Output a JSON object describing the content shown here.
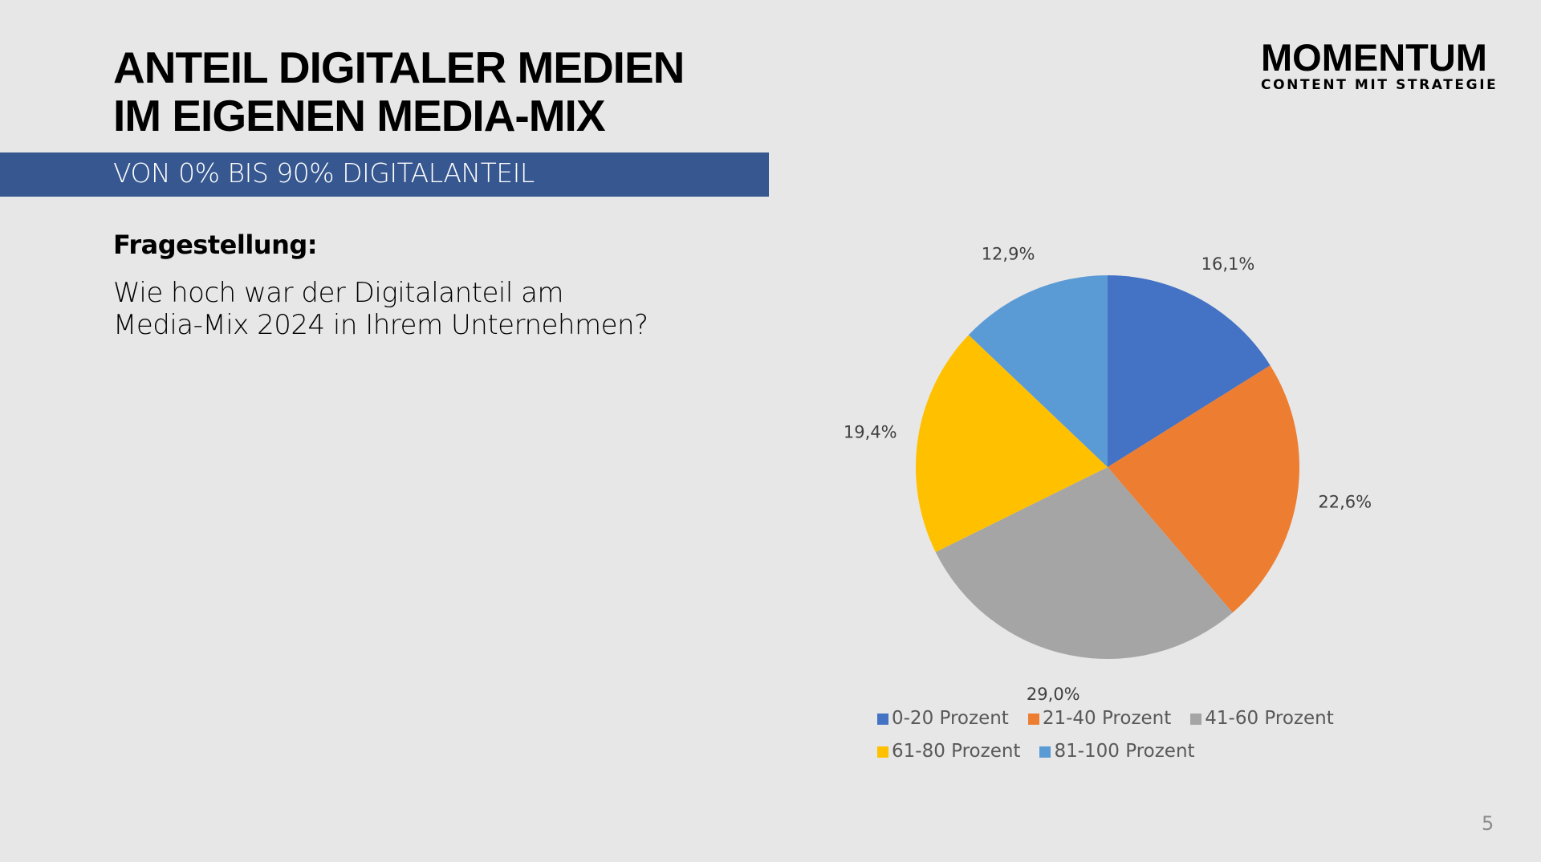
{
  "title": {
    "line1": "ANTEIL DIGITALER MEDIEN",
    "line2": "IM EIGENEN MEDIA-MIX"
  },
  "subtitle": "VON 0% BIS 90% DIGITALANTEIL",
  "question_label": "Fragestellung:",
  "question": {
    "line1": "Wie hoch war der Digitalanteil am",
    "line2": "Media-Mix 2024 in Ihrem Unternehmen?"
  },
  "logo": {
    "name": "MOMENTUM",
    "tagline": "CONTENT MIT STRATEGIE"
  },
  "page_number": "5",
  "chart_data": {
    "type": "pie",
    "start": "top, clockwise",
    "legend_placement": "bottom",
    "categories": [
      "0-20 Prozent",
      "21-40 Prozent",
      "41-60 Prozent",
      "61-80 Prozent",
      "81-100 Prozent"
    ],
    "values": [
      16.1,
      22.6,
      29.0,
      19.4,
      12.9
    ],
    "labels": [
      "16,1%",
      "22,6%",
      "29,0%",
      "19,4%",
      "12,9%"
    ],
    "colors": [
      "#4472c4",
      "#ed7d31",
      "#a5a5a5",
      "#ffc000",
      "#5b9bd5"
    ]
  }
}
